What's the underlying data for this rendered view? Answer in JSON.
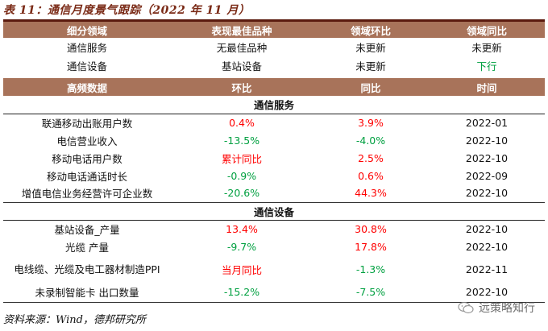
{
  "title": "表 11：通信月度景气跟踪（2022 年 11 月）",
  "summary": {
    "headers": [
      "细分领域",
      "表现最佳品种",
      "领域环比",
      "领域同比"
    ],
    "rows": [
      {
        "field": "通信服务",
        "best": "无最佳品种",
        "mom": "未更新",
        "yoy": "未更新",
        "yoy_color": "#111111"
      },
      {
        "field": "通信设备",
        "best": "基站设备",
        "mom": "未更新",
        "yoy": "下行",
        "yoy_color": "#00a040"
      }
    ]
  },
  "detail": {
    "headers": [
      "高频数据",
      "环比",
      "同比",
      "时间"
    ],
    "sections": [
      {
        "name": "通信服务",
        "rows": [
          {
            "name": "联通移动出账用户数",
            "mom": "0.4%",
            "mom_color": "#ff0000",
            "yoy": "3.9%",
            "yoy_color": "#ff0000",
            "time": "2022-01"
          },
          {
            "name": "电信营业收入",
            "mom": "-13.5%",
            "mom_color": "#00a040",
            "yoy": "-4.0%",
            "yoy_color": "#00a040",
            "time": "2022-10"
          },
          {
            "name": "移动电话用户数",
            "mom": "累计同比",
            "mom_color": "#ff0000",
            "yoy": "2.5%",
            "yoy_color": "#ff0000",
            "time": "2022-10"
          },
          {
            "name": "移动电话通话时长",
            "mom": "-0.9%",
            "mom_color": "#00a040",
            "yoy": "0.6%",
            "yoy_color": "#ff0000",
            "time": "2022-09"
          },
          {
            "name": "增值电信业务经营许可企业数",
            "mom": "-20.6%",
            "mom_color": "#00a040",
            "yoy": "44.3%",
            "yoy_color": "#ff0000",
            "time": "2022-10"
          }
        ]
      },
      {
        "name": "通信设备",
        "rows": [
          {
            "name": "基站设备_产量",
            "mom": "13.4%",
            "mom_color": "#ff0000",
            "yoy": "30.8%",
            "yoy_color": "#ff0000",
            "time": "2022-10"
          },
          {
            "name": "光缆 产量",
            "mom": "-9.7%",
            "mom_color": "#00a040",
            "yoy": "17.8%",
            "yoy_color": "#ff0000",
            "time": "2022-10"
          },
          {
            "name": "电线缆、光缆及电工器材制造PPI",
            "mom": "当月同比",
            "mom_color": "#ff0000",
            "yoy": "-1.3%",
            "yoy_color": "#00a040",
            "time": "2022-11"
          },
          {
            "name": "未录制智能卡 出口数量",
            "mom": "-15.2%",
            "mom_color": "#00a040",
            "yoy": "-7.5%",
            "yoy_color": "#00a040",
            "time": "2022-10"
          }
        ]
      }
    ]
  },
  "source": "资料来源：Wind，德邦研究所",
  "watermark": {
    "icon": "wechat-icon",
    "text": "远策略知行"
  }
}
